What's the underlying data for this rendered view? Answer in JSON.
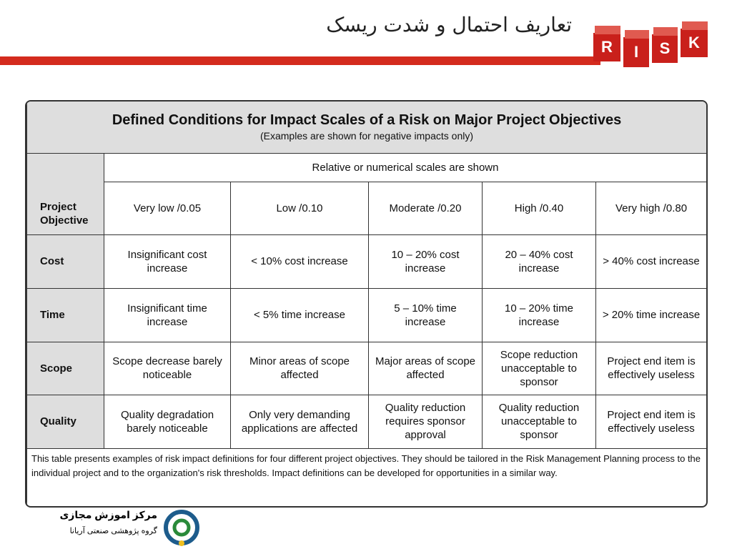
{
  "header": {
    "title": "تعاریف احتمال و شدت ریسک",
    "logo_letters": [
      "R",
      "I",
      "S",
      "K"
    ]
  },
  "table": {
    "title": "Defined Conditions for Impact Scales of a Risk on Major Project Objectives",
    "subtitle": "(Examples are shown for negative impacts only)",
    "scale_note": "Relative or numerical scales are shown",
    "row_header": "Project Objective",
    "columns": [
      "Very low /0.05",
      "Low /0.10",
      "Moderate /0.20",
      "High /0.40",
      "Very high /0.80"
    ],
    "rows": [
      [
        "Cost",
        "Insignificant cost increase",
        "< 10% cost increase",
        "10 – 20% cost increase",
        "20 – 40% cost increase",
        "> 40% cost increase"
      ],
      [
        "Time",
        "Insignificant time increase",
        "< 5% time increase",
        "5 – 10% time increase",
        "10 – 20% time increase",
        "> 20% time increase"
      ],
      [
        "Scope",
        "Scope decrease barely noticeable",
        "Minor areas of scope affected",
        "Major areas of scope affected",
        "Scope reduction unacceptable to sponsor",
        "Project end item is effectively useless"
      ],
      [
        "Quality",
        "Quality degradation barely noticeable",
        "Only very demanding applications are affected",
        "Quality reduction requires sponsor approval",
        "Quality reduction unacceptable to sponsor",
        "Project end item is effectively useless"
      ]
    ],
    "footnote": "This table presents examples of risk impact definitions for four different project objectives. They should be tailored in the Risk Management Planning process to the individual project and to the organization's risk thresholds. Impact definitions can be developed for opportunities in a similar way."
  },
  "footer": {
    "org_name": "مرکز اموزش مجازی",
    "org_subtitle": "گروه پژوهشی صنعتی آریانا"
  }
}
